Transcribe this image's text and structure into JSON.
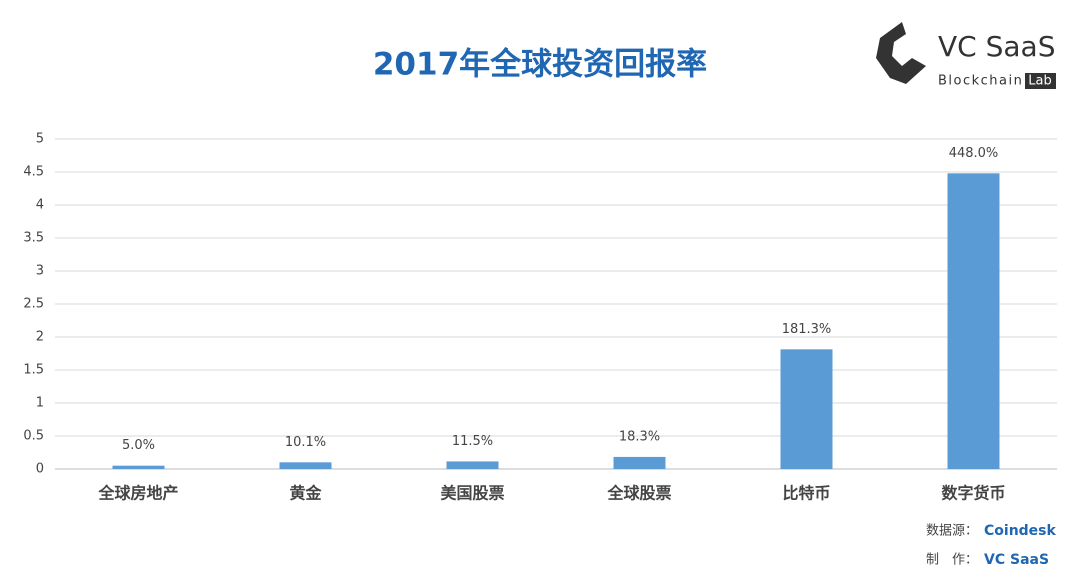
{
  "chart_data": {
    "type": "bar",
    "title": "2017年全球投资回报率",
    "categories": [
      "全球房地产",
      "黄金",
      "美国股票",
      "全球股票",
      "比特币",
      "数字货币"
    ],
    "values": [
      0.05,
      0.101,
      0.115,
      0.183,
      1.813,
      4.48
    ],
    "value_labels": [
      "5.0%",
      "10.1%",
      "11.5%",
      "18.3%",
      "181.3%",
      "448.0%"
    ],
    "color": "#5b9bd5",
    "ylim": [
      0,
      5
    ],
    "yticks": [
      0,
      0.5,
      1,
      1.5,
      2,
      2.5,
      3,
      3.5,
      4,
      4.5,
      5
    ],
    "grid": true
  },
  "logo": {
    "name": "VC SaaS",
    "sub": "Blockchain",
    "badge": "Lab"
  },
  "footer": {
    "source_label": "数据源：",
    "source": "Coindesk",
    "author_label": "制　作：",
    "author": "VC SaaS"
  }
}
